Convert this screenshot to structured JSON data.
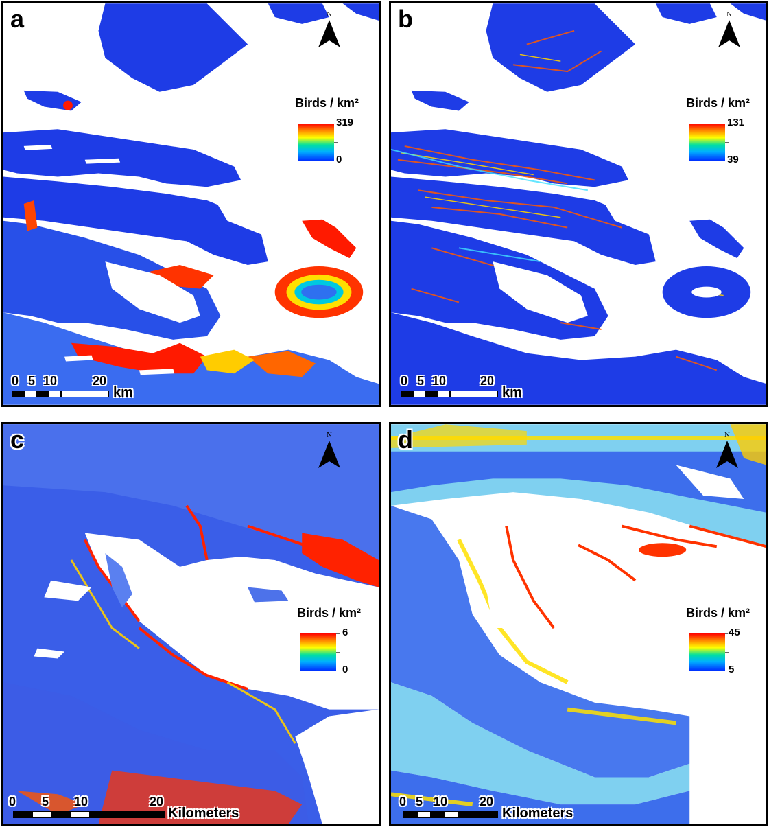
{
  "panels": {
    "a": {
      "letter": "a",
      "north_label": "N",
      "legend_title": "Birds / km²",
      "legend_max": "319",
      "legend_min": "0",
      "scale_ticks": [
        "0",
        "5",
        "10",
        "20"
      ],
      "scale_unit": "km"
    },
    "b": {
      "letter": "b",
      "north_label": "N",
      "legend_title": "Birds / km²",
      "legend_max": "131",
      "legend_min": "39",
      "scale_ticks": [
        "0",
        "5",
        "10",
        "20"
      ],
      "scale_unit": "km"
    },
    "c": {
      "letter": "c",
      "north_label": "N",
      "legend_title": "Birds / km²",
      "legend_max": "6",
      "legend_min": "0",
      "scale_ticks": [
        "0",
        "5",
        "10",
        "20"
      ],
      "scale_unit": "Kilometers"
    },
    "d": {
      "letter": "d",
      "north_label": "N",
      "legend_title": "Birds / km²",
      "legend_max": "45",
      "legend_min": "5",
      "scale_ticks": [
        "0",
        "5",
        "10",
        "20"
      ],
      "scale_unit": "Kilometers"
    }
  },
  "colors": {
    "ramp_high": "#ff0000",
    "ramp_mid": "#ffff00",
    "ramp_low": "#0030ff",
    "background": "#ffffff"
  }
}
